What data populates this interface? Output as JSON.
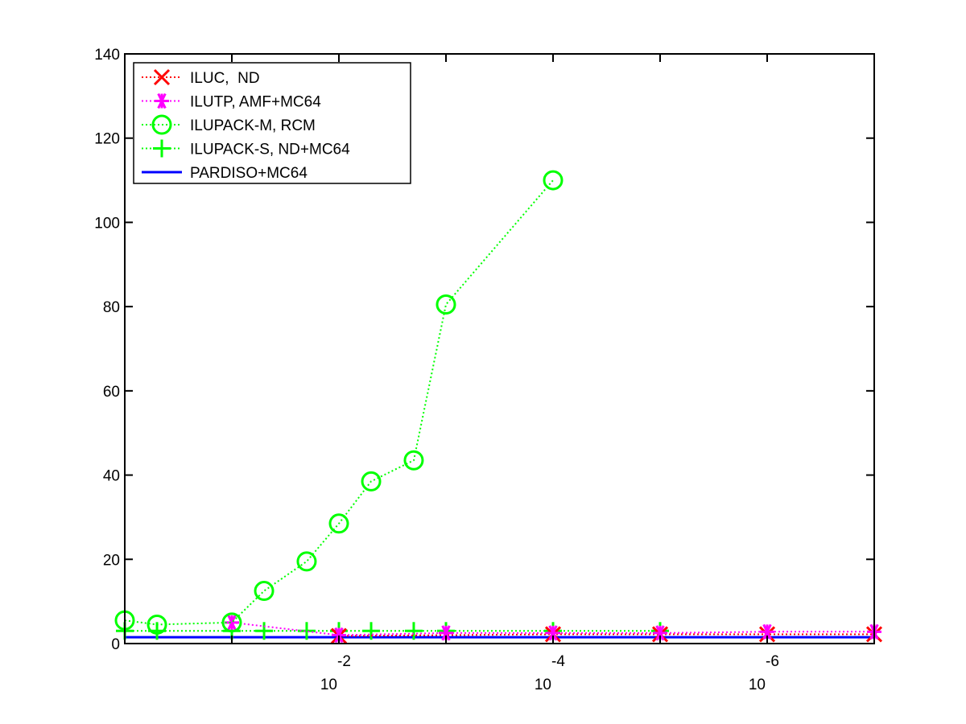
{
  "chart_data": {
    "type": "line",
    "title": "",
    "xlabel": "",
    "ylabel": "",
    "x_scale": "log",
    "x_reversed": true,
    "xlim": [
      1,
      1e-07
    ],
    "ylim": [
      0,
      140
    ],
    "yticks": [
      0,
      20,
      40,
      60,
      80,
      100,
      120,
      140
    ],
    "xticks": [
      {
        "value": 0.01,
        "base": "10",
        "exp": "-2"
      },
      {
        "value": 0.0001,
        "base": "10",
        "exp": "-4"
      },
      {
        "value": 1e-06,
        "base": "10",
        "exp": "-6"
      }
    ],
    "grid": false,
    "legend_position": "top-left",
    "series": [
      {
        "name": "ILUC,  ND",
        "color": "#ff0000",
        "marker": "x",
        "line": "dotted",
        "x": [
          0.01,
          0.0001,
          1e-05,
          1e-06,
          1e-07
        ],
        "y": [
          1.8,
          2.2,
          2.2,
          2.2,
          2.2
        ]
      },
      {
        "name": "ILUTP, AMF+MC64",
        "color": "#ff00ff",
        "marker": "asterisk",
        "line": "dotted",
        "x": [
          0.1,
          0.01,
          0.001,
          0.0001,
          1e-05,
          1e-06,
          1e-07
        ],
        "y": [
          5,
          2,
          2.5,
          2.5,
          2.5,
          2.8,
          2.8
        ]
      },
      {
        "name": "ILUPACK-M, RCM",
        "color": "#00ff00",
        "marker": "circle",
        "line": "dotted",
        "x": [
          1,
          0.5,
          0.1,
          0.05,
          0.02,
          0.01,
          0.005,
          0.002,
          0.001,
          0.0001
        ],
        "y": [
          5.5,
          4.5,
          5,
          12.5,
          19.5,
          28.5,
          38.5,
          43.5,
          80.5,
          110
        ]
      },
      {
        "name": "ILUPACK-S, ND+MC64",
        "color": "#00ff00",
        "marker": "plus",
        "line": "dotted",
        "x": [
          1,
          0.5,
          0.1,
          0.05,
          0.02,
          0.01,
          0.005,
          0.002,
          0.001,
          0.0001,
          1e-05
        ],
        "y": [
          3,
          3,
          3,
          3,
          3,
          3,
          3,
          3,
          3,
          3,
          3
        ]
      },
      {
        "name": "PARDISO+MC64",
        "color": "#0000ff",
        "marker": "none",
        "line": "solid",
        "x": [
          1,
          1e-07
        ],
        "y": [
          1.5,
          1.5
        ]
      }
    ]
  }
}
